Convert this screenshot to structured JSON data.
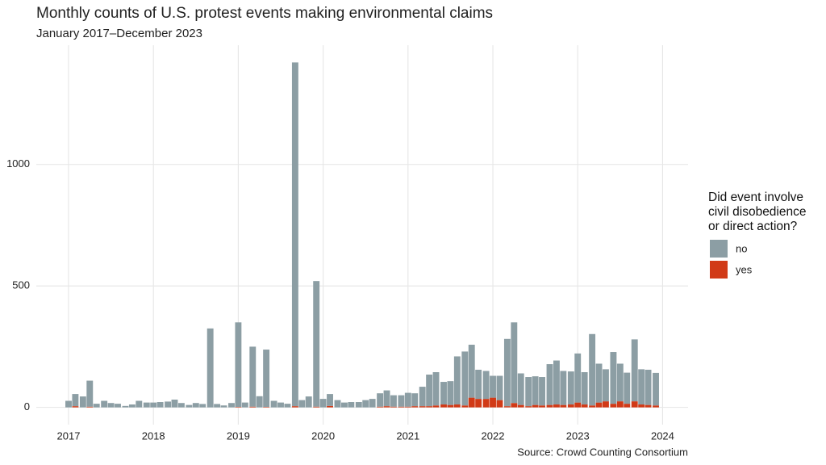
{
  "chart_data": {
    "type": "stacked_bar",
    "title": "Monthly counts of U.S. protest events making environmental claims",
    "subtitle": "January 2017–December 2023",
    "caption": "Source: Crowd Counting Consortium",
    "legend_title": "Did event involve\ncivil disobedience\nor direct action?",
    "legend_position": "right",
    "grid": true,
    "x": [
      2017.0,
      2017.08,
      2017.17,
      2017.25,
      2017.33,
      2017.42,
      2017.5,
      2017.58,
      2017.67,
      2017.75,
      2017.83,
      2017.92,
      2018.0,
      2018.08,
      2018.17,
      2018.25,
      2018.33,
      2018.42,
      2018.5,
      2018.58,
      2018.67,
      2018.75,
      2018.83,
      2018.92,
      2019.0,
      2019.08,
      2019.17,
      2019.25,
      2019.33,
      2019.42,
      2019.5,
      2019.58,
      2019.67,
      2019.75,
      2019.83,
      2019.92,
      2020.0,
      2020.08,
      2020.17,
      2020.25,
      2020.33,
      2020.42,
      2020.5,
      2020.58,
      2020.67,
      2020.75,
      2020.83,
      2020.92,
      2021.0,
      2021.08,
      2021.17,
      2021.25,
      2021.33,
      2021.42,
      2021.5,
      2021.58,
      2021.67,
      2021.75,
      2021.83,
      2021.92,
      2022.0,
      2022.08,
      2022.17,
      2022.25,
      2022.33,
      2022.42,
      2022.5,
      2022.58,
      2022.67,
      2022.75,
      2022.83,
      2022.92,
      2023.0,
      2023.08,
      2023.17,
      2023.25,
      2023.33,
      2023.42,
      2023.5,
      2023.58,
      2023.67,
      2023.75,
      2023.83,
      2023.92
    ],
    "xlim": [
      2016.62,
      2024.3
    ],
    "xticks": [
      2017,
      2018,
      2019,
      2020,
      2021,
      2022,
      2023,
      2024
    ],
    "ylim": [
      -71,
      1491
    ],
    "yticks": [
      0,
      500,
      1000
    ],
    "series": [
      {
        "name": "yes",
        "color": "#d13a17",
        "values": [
          0,
          5,
          0,
          3,
          0,
          0,
          0,
          0,
          0,
          0,
          0,
          0,
          0,
          0,
          0,
          0,
          0,
          0,
          0,
          0,
          0,
          0,
          0,
          0,
          2,
          0,
          3,
          0,
          2,
          0,
          0,
          0,
          5,
          0,
          0,
          3,
          0,
          6,
          0,
          0,
          0,
          0,
          0,
          0,
          3,
          5,
          3,
          3,
          3,
          5,
          5,
          5,
          8,
          12,
          10,
          12,
          8,
          40,
          35,
          35,
          40,
          30,
          5,
          18,
          10,
          5,
          10,
          8,
          10,
          12,
          10,
          12,
          20,
          12,
          8,
          20,
          25,
          15,
          25,
          15,
          25,
          12,
          10,
          8
        ]
      },
      {
        "name": "no",
        "color": "#8c9ea4",
        "values": [
          27,
          50,
          45,
          107,
          15,
          27,
          18,
          15,
          6,
          12,
          27,
          20,
          20,
          22,
          24,
          32,
          18,
          10,
          18,
          14,
          325,
          14,
          8,
          18,
          348,
          20,
          247,
          46,
          236,
          27,
          20,
          15,
          1415,
          30,
          45,
          517,
          35,
          49,
          30,
          20,
          22,
          22,
          30,
          35,
          55,
          65,
          47,
          47,
          57,
          53,
          80,
          130,
          137,
          93,
          98,
          198,
          222,
          218,
          120,
          115,
          90,
          100,
          277,
          332,
          130,
          120,
          118,
          117,
          168,
          181,
          140,
          136,
          202,
          133,
          294,
          160,
          132,
          213,
          155,
          128,
          255,
          145,
          145,
          134
        ]
      }
    ]
  }
}
